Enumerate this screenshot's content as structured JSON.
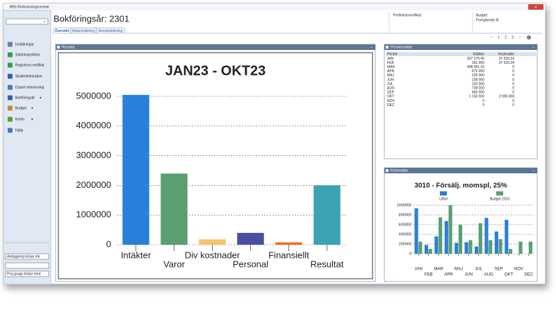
{
  "window": {
    "title": "BBS Redovisningscentral"
  },
  "sidebar": {
    "items": [
      "Inställningar",
      "Saldoinspektion",
      "Registrera verifikat",
      "Skattedeklaration",
      "Export redovisning",
      "Bokföringsår",
      "Budget",
      "Konto",
      "Hjälp"
    ],
    "filters": [
      "Anläggning börjar me",
      "Proj grupp börjar med"
    ]
  },
  "header": {
    "title": "Bokföringsår: 2301",
    "tabs": [
      "Översikt",
      "Balansräkning",
      "Resultaträkning"
    ],
    "prelim": "Preliminärverifikat:",
    "budget": "Budget:",
    "budget_value": "Föregående år",
    "pages": [
      "1",
      "2",
      "3"
    ]
  },
  "panels": {
    "result": "Resultat",
    "period": "Periodresultat",
    "account": "Kontosaldo"
  },
  "table": {
    "columns": [
      "Period",
      "Intäkter",
      "Kostnader"
    ],
    "rows": [
      [
        "JAN",
        "937 276.40",
        "37 533.33"
      ],
      [
        "FEB",
        "181 000",
        "37 533.34"
      ],
      [
        "MAR",
        "408 451.15",
        "0"
      ],
      [
        "APR",
        "675 000",
        "0"
      ],
      [
        "MAJ",
        "225 000",
        "0"
      ],
      [
        "JUN",
        "238 000",
        "0"
      ],
      [
        "JUL",
        "150 000",
        "0"
      ],
      [
        "AUG",
        "738 000",
        "0"
      ],
      [
        "SEP",
        "460 000",
        "0"
      ],
      [
        "OKT",
        "1 150 000",
        "2 995 000"
      ],
      [
        "NOV",
        "0",
        "0"
      ],
      [
        "DEC",
        "0",
        "0"
      ]
    ]
  },
  "chart_data": [
    {
      "type": "bar",
      "title": "JAN23 - OKT23",
      "categories": [
        "Intäkter",
        "Varor",
        "Div kostnader",
        "Personal",
        "Finansiellt",
        "Resultat"
      ],
      "values": [
        5050000,
        2400000,
        180000,
        400000,
        80000,
        2000000
      ],
      "colors": [
        "#2a80d8",
        "#5a9e72",
        "#f5c46a",
        "#4b4fa0",
        "#f26a1e",
        "#3aa3b4"
      ],
      "ylim": [
        0,
        5000000
      ],
      "yticks": [
        0,
        1000000,
        2000000,
        3000000,
        4000000,
        5000000
      ],
      "grid": true
    },
    {
      "type": "grouped_bar",
      "title": "3010   - Försälj. momspl, 25%",
      "categories": [
        "JAN",
        "FEB",
        "MAR",
        "APR",
        "MAJ",
        "JUN",
        "JUL",
        "AUG",
        "SEP",
        "OKT",
        "NOV",
        "DEC"
      ],
      "series": [
        {
          "name": "Utfall",
          "color": "#2a80d8",
          "values": [
            937000,
            181000,
            360000,
            675000,
            225000,
            238000,
            150000,
            738000,
            460000,
            700000,
            0,
            0
          ]
        },
        {
          "name": "Budget 2023",
          "color": "#5a9e72",
          "values": [
            250000,
            100000,
            750000,
            1000000,
            600000,
            280000,
            630000,
            280000,
            300000,
            100000,
            250000,
            250000
          ]
        }
      ],
      "ylim": [
        0,
        1000000
      ],
      "yticks": [
        0,
        200000,
        400000,
        600000,
        800000,
        1000000
      ],
      "grid": true
    }
  ]
}
